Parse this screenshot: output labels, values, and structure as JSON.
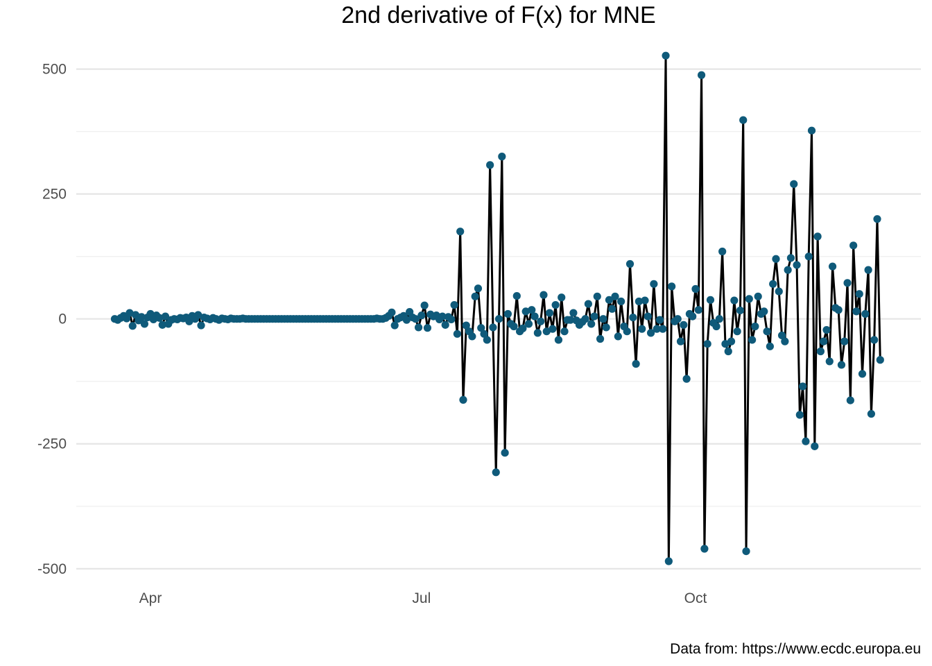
{
  "chart_data": {
    "type": "line",
    "title": "2nd derivative of F(x) for MNE",
    "xlabel": "",
    "ylabel": "",
    "caption": "Data from: https://www.ecdc.europa.eu",
    "x_start": "2020-03-20",
    "x_ticks": [
      {
        "label": "Apr",
        "date": "2020-04-01"
      },
      {
        "label": "Jul",
        "date": "2020-07-01"
      },
      {
        "label": "Oct",
        "date": "2020-10-01"
      }
    ],
    "y_ticks": [
      -500,
      -250,
      0,
      250,
      500
    ],
    "ylim": [
      -535,
      555
    ],
    "grid": true,
    "line_color": "#000000",
    "point_color": "#0f5a7a",
    "values": [
      0,
      -2,
      2,
      6,
      1,
      12,
      -14,
      8,
      -3,
      4,
      -10,
      3,
      10,
      -1,
      7,
      2,
      -12,
      5,
      -10,
      -2,
      0,
      -1,
      2,
      1,
      3,
      -5,
      6,
      0,
      8,
      -13,
      3,
      1,
      -1,
      2,
      0,
      -2,
      1,
      0,
      -1,
      1,
      0,
      0,
      0,
      1,
      0,
      0,
      0,
      0,
      0,
      0,
      0,
      0,
      0,
      0,
      0,
      0,
      0,
      0,
      0,
      0,
      0,
      0,
      0,
      0,
      0,
      0,
      0,
      0,
      0,
      0,
      0,
      0,
      0,
      0,
      0,
      0,
      0,
      0,
      0,
      0,
      0,
      0,
      0,
      0,
      0,
      0,
      0,
      0,
      1,
      0,
      0,
      2,
      6,
      13,
      -13,
      0,
      3,
      6,
      -2,
      14,
      3,
      0,
      -17,
      7,
      27,
      -18,
      9,
      5,
      7,
      -1,
      5,
      -12,
      4,
      -1,
      28,
      -30,
      175,
      -162,
      -13,
      -25,
      -35,
      45,
      61,
      -18,
      -30,
      -42,
      308,
      -17,
      -307,
      0,
      325,
      -268,
      10,
      -10,
      -15,
      46,
      -25,
      -19,
      15,
      -10,
      18,
      5,
      -28,
      -5,
      48,
      -25,
      12,
      -20,
      28,
      -42,
      43,
      -25,
      -2,
      -2,
      12,
      -3,
      -12,
      -6,
      0,
      30,
      -10,
      5,
      45,
      -40,
      0,
      -17,
      38,
      20,
      45,
      -35,
      35,
      -15,
      -25,
      110,
      3,
      -90,
      35,
      -20,
      37,
      5,
      -28,
      70,
      -20,
      -2,
      -20,
      527,
      -485,
      65,
      -5,
      0,
      -45,
      -12,
      -120,
      10,
      5,
      60,
      18,
      488,
      -460,
      -50,
      38,
      -8,
      -15,
      0,
      135,
      -50,
      -65,
      -45,
      37,
      -25,
      17,
      398,
      -465,
      40,
      -42,
      -15,
      45,
      10,
      15,
      -25,
      -55,
      70,
      120,
      55,
      -33,
      -45,
      98,
      122,
      270,
      108,
      -192,
      -135,
      -245,
      125,
      377,
      -255,
      165,
      -65,
      -45,
      -22,
      -85,
      105,
      22,
      18,
      -92,
      -45,
      72,
      -163,
      147,
      15,
      50,
      -110,
      10,
      98,
      -190,
      -42,
      200,
      -82
    ]
  }
}
